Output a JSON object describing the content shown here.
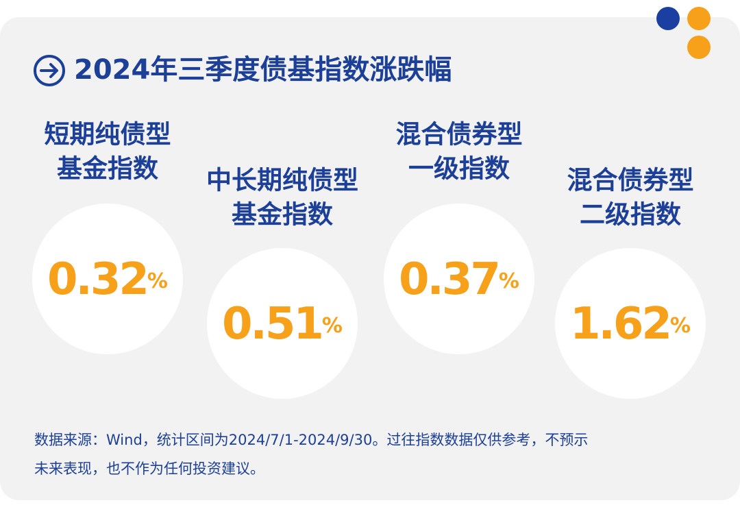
{
  "header": {
    "title": "2024年三季度债基指数涨跌幅"
  },
  "items": [
    {
      "label": [
        "短期纯债型",
        "基金指数"
      ],
      "value": "0.32",
      "unit": "%"
    },
    {
      "label": [
        "中长期纯债型",
        "基金指数"
      ],
      "value": "0.51",
      "unit": "%"
    },
    {
      "label": [
        "混合债券型",
        "一级指数"
      ],
      "value": "0.37",
      "unit": "%"
    },
    {
      "label": [
        "混合债券型",
        "二级指数"
      ],
      "value": "1.62",
      "unit": "%"
    }
  ],
  "footnote": [
    "数据来源：Wind，统计区间为2024/7/1-2024/9/30。过往指数数据仅供参考，不预示",
    "未来表现，也不作为任何投资建议。"
  ]
}
